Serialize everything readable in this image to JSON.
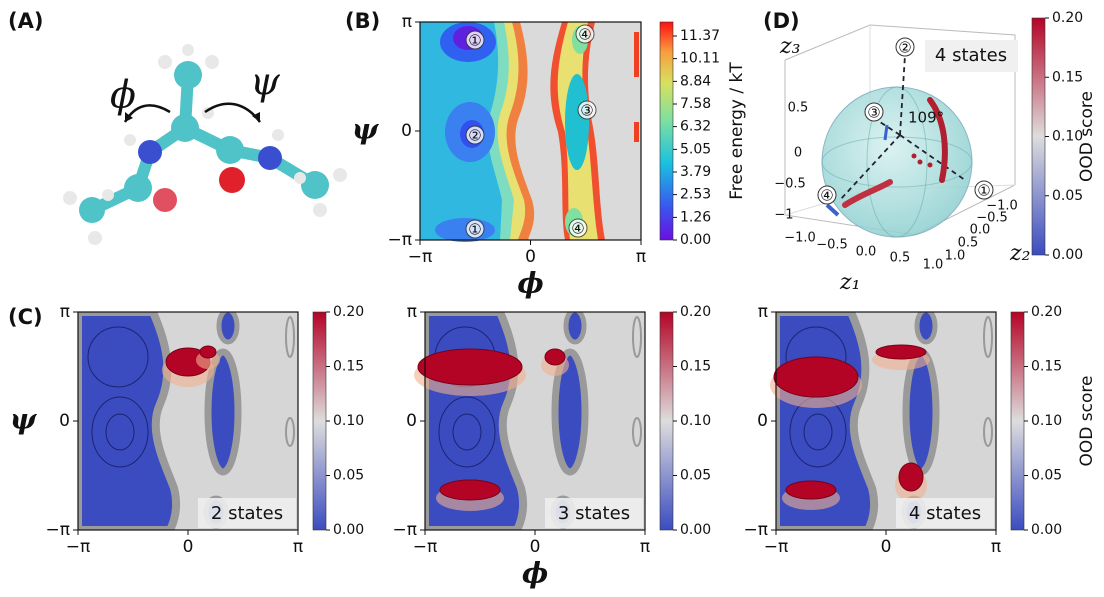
{
  "panel_labels": [
    "(A)",
    "(B)",
    "(C)",
    "(D)"
  ],
  "panel_a": {
    "angles": [
      "ϕ",
      "ψ"
    ]
  },
  "panel_b": {
    "x_label": "ϕ",
    "y_label": "ψ",
    "xlim": [
      -3.1416,
      3.1416
    ],
    "ylim": [
      -3.1416,
      3.1416
    ],
    "xticks": [
      {
        "value": -3.1416,
        "label": "−π"
      },
      0,
      {
        "value": 3.1416,
        "label": "π"
      }
    ],
    "yticks": [
      {
        "value": -3.1416,
        "label": "−π"
      },
      0,
      {
        "value": 3.1416,
        "label": "π"
      }
    ],
    "colorbar": {
      "label": "Free energy / kT",
      "lim": [
        0,
        12.15
      ],
      "ticks": [
        {
          "value": 0,
          "label": "0.00"
        },
        1.26,
        2.53,
        3.79,
        5.05,
        6.32,
        7.58,
        8.84,
        10.11,
        11.37
      ]
    },
    "states": [
      "①",
      "④",
      "②",
      "③",
      "①",
      "④"
    ]
  },
  "panel_c": {
    "x_label": "ϕ",
    "y_label": "ψ",
    "xlim": [
      -3.1416,
      3.1416
    ],
    "ylim": [
      -3.1416,
      3.1416
    ],
    "xticks": [
      {
        "value": -3.1416,
        "label": "−π"
      },
      0,
      {
        "value": 3.1416,
        "label": "π"
      }
    ],
    "yticks": [
      {
        "value": -3.1416,
        "label": "−π"
      },
      0,
      {
        "value": 3.1416,
        "label": "π"
      }
    ],
    "colorbar": {
      "label": "OOD score",
      "lim": [
        0,
        0.2
      ],
      "ticks": [
        {
          "value": 0,
          "label": "0.00"
        },
        0.05,
        {
          "value": 0.1,
          "label": "0.10"
        },
        0.15,
        {
          "value": 0.2,
          "label": "0.20"
        }
      ]
    },
    "plots": [
      {
        "annotation": "2 states"
      },
      {
        "annotation": "3 states"
      },
      {
        "annotation": "4 states"
      }
    ]
  },
  "panel_d": {
    "axis_labels": [
      "z₁",
      "z₂",
      "z₃"
    ],
    "z1_ticks": [
      {
        "value": -1,
        "label": "−1.0"
      },
      {
        "value": -0.5,
        "label": "−0.5"
      },
      {
        "value": 0,
        "label": "0.0"
      },
      0.5,
      {
        "value": 1,
        "label": "1.0"
      }
    ],
    "z2_ticks": [
      {
        "value": -1,
        "label": "−1.0"
      },
      {
        "value": -0.5,
        "label": "−0.5"
      },
      {
        "value": 0,
        "label": "0.0"
      },
      0.5,
      {
        "value": 1,
        "label": "1.0"
      }
    ],
    "z3_ticks": [
      0.5,
      0,
      {
        "value": -0.5,
        "label": "−0.5"
      },
      {
        "value": -1,
        "label": "−1"
      }
    ],
    "states": [
      "②",
      "③",
      "④",
      "①"
    ],
    "angle": "109°",
    "annotation": "4 states",
    "colorbar": {
      "label": "OOD score",
      "lim": [
        0,
        0.2
      ],
      "ticks": [
        {
          "value": 0,
          "label": "0.00"
        },
        0.05,
        {
          "value": 0.1,
          "label": "0.10"
        },
        0.15,
        {
          "value": 0.2,
          "label": "0.20"
        }
      ]
    }
  }
}
